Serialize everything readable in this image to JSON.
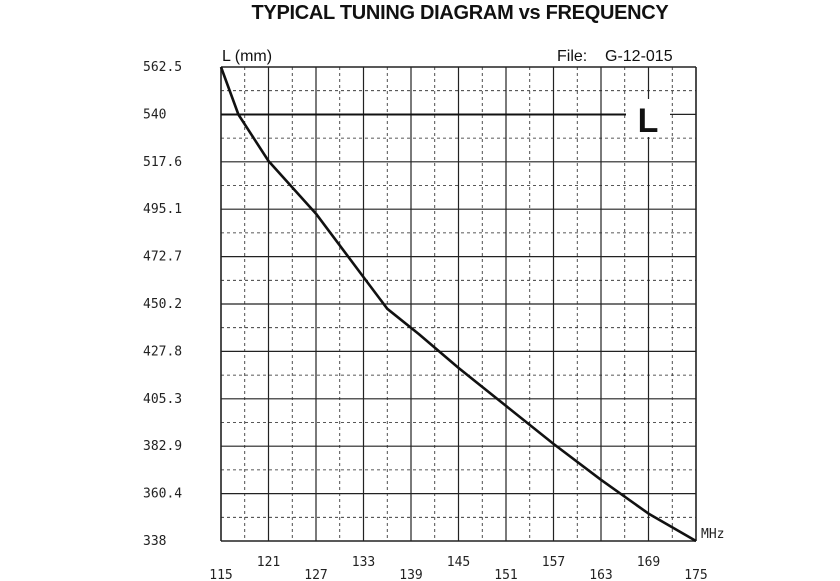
{
  "chart_data": {
    "type": "line",
    "title": "TYPICAL TUNING DIAGRAM vs FREQUENCY",
    "file_label": "File:",
    "file_id": "G-12-015",
    "ylabel": "L (mm)",
    "xlabel": "MHz",
    "marker_label": "L",
    "xlim": [
      115,
      175
    ],
    "ylim": [
      338,
      562.5
    ],
    "x_ticks_upper": [
      "121",
      "133",
      "145",
      "157",
      "169"
    ],
    "x_ticks_lower": [
      "115",
      "127",
      "139",
      "151",
      "163",
      "175"
    ],
    "y_ticks": [
      "562.5",
      "540",
      "517.6",
      "495.1",
      "472.7",
      "450.2",
      "427.8",
      "405.3",
      "382.9",
      "360.4",
      "338"
    ],
    "grid": "major solid every 6 MHz and 22.45 mm, minor dashed between",
    "series": [
      {
        "x": [
          115,
          117.2,
          121,
          127,
          133,
          136,
          140,
          145,
          151,
          157,
          163,
          169,
          175
        ],
        "y": [
          562.5,
          540,
          518,
          493,
          463,
          448,
          436,
          420,
          402,
          384,
          367,
          351,
          338
        ]
      }
    ]
  }
}
